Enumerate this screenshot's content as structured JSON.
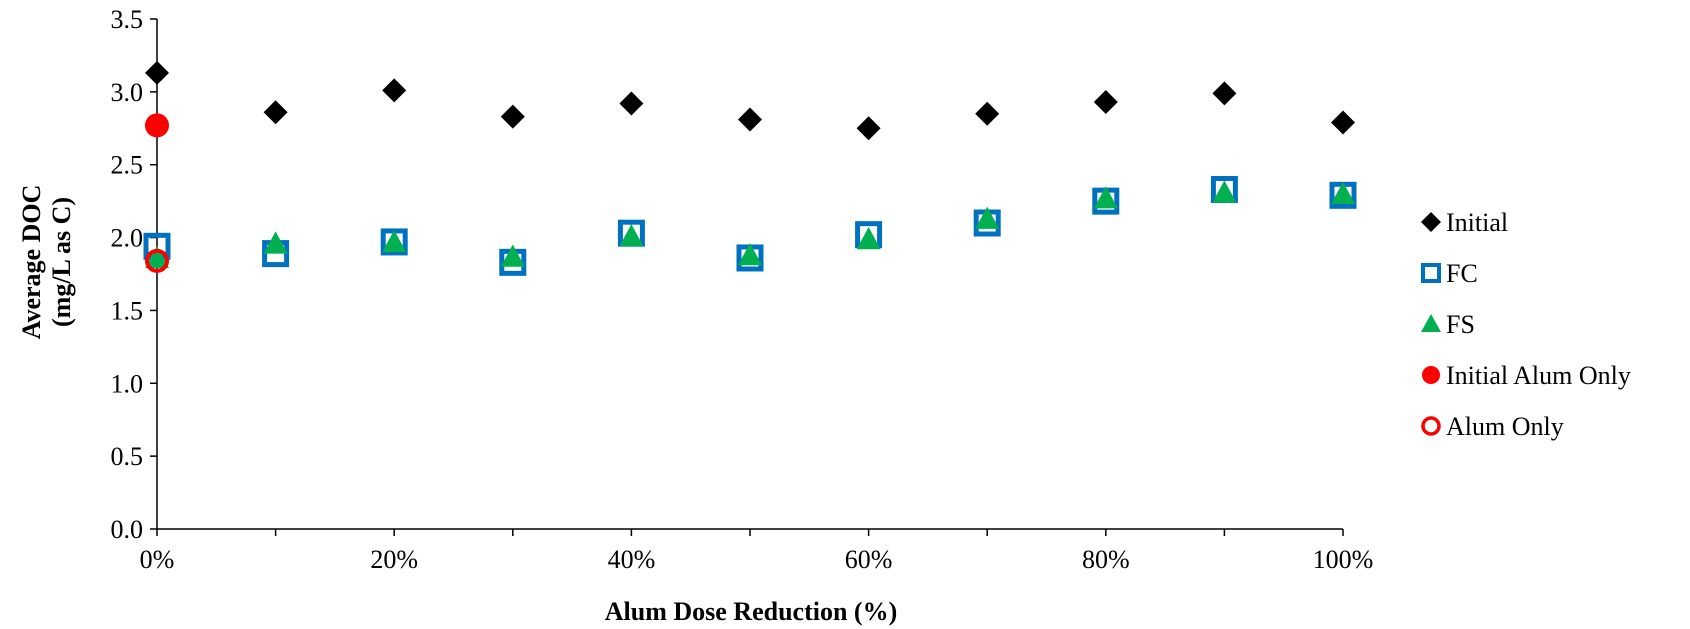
{
  "chart_data": {
    "type": "scatter",
    "title": "",
    "xlabel": "Alum Dose Reduction (%)",
    "ylabel_line1": "Average DOC",
    "ylabel_line2": "(mg/L as C)",
    "xlim": [
      0,
      100
    ],
    "ylim": [
      0,
      3.5
    ],
    "x_ticks": [
      "0%",
      "20%",
      "40%",
      "60%",
      "80%",
      "100%"
    ],
    "y_ticks": [
      "0.0",
      "0.5",
      "1.0",
      "1.5",
      "2.0",
      "2.5",
      "3.0",
      "3.5"
    ],
    "grid": false,
    "legend_position": "right",
    "series": [
      {
        "name": "Initial",
        "marker": "diamond",
        "color": "#000000",
        "x": [
          0,
          10,
          20,
          30,
          40,
          50,
          60,
          70,
          80,
          90,
          100
        ],
        "y": [
          3.13,
          2.86,
          3.01,
          2.83,
          2.92,
          2.81,
          2.75,
          2.85,
          2.93,
          2.99,
          2.79
        ]
      },
      {
        "name": "FC",
        "marker": "square-open",
        "color": "#0070C0",
        "x": [
          0,
          10,
          20,
          30,
          40,
          50,
          60,
          70,
          80,
          90,
          100
        ],
        "y": [
          1.94,
          1.89,
          1.97,
          1.83,
          2.03,
          1.86,
          2.02,
          2.1,
          2.25,
          2.33,
          2.29
        ]
      },
      {
        "name": "FS",
        "marker": "triangle",
        "color": "#00B050",
        "x": [
          0,
          10,
          20,
          30,
          40,
          50,
          60,
          70,
          80,
          90,
          100
        ],
        "y": [
          1.86,
          1.96,
          1.97,
          1.87,
          2.01,
          1.88,
          1.99,
          2.13,
          2.27,
          2.31,
          2.3
        ]
      },
      {
        "name": "Initial Alum Only",
        "marker": "circle",
        "color": "#FF0000",
        "x": [
          0
        ],
        "y": [
          2.77
        ]
      },
      {
        "name": "Alum Only",
        "marker": "circle-open",
        "color": "#FF0000",
        "x": [
          0
        ],
        "y": [
          1.84
        ]
      }
    ]
  }
}
